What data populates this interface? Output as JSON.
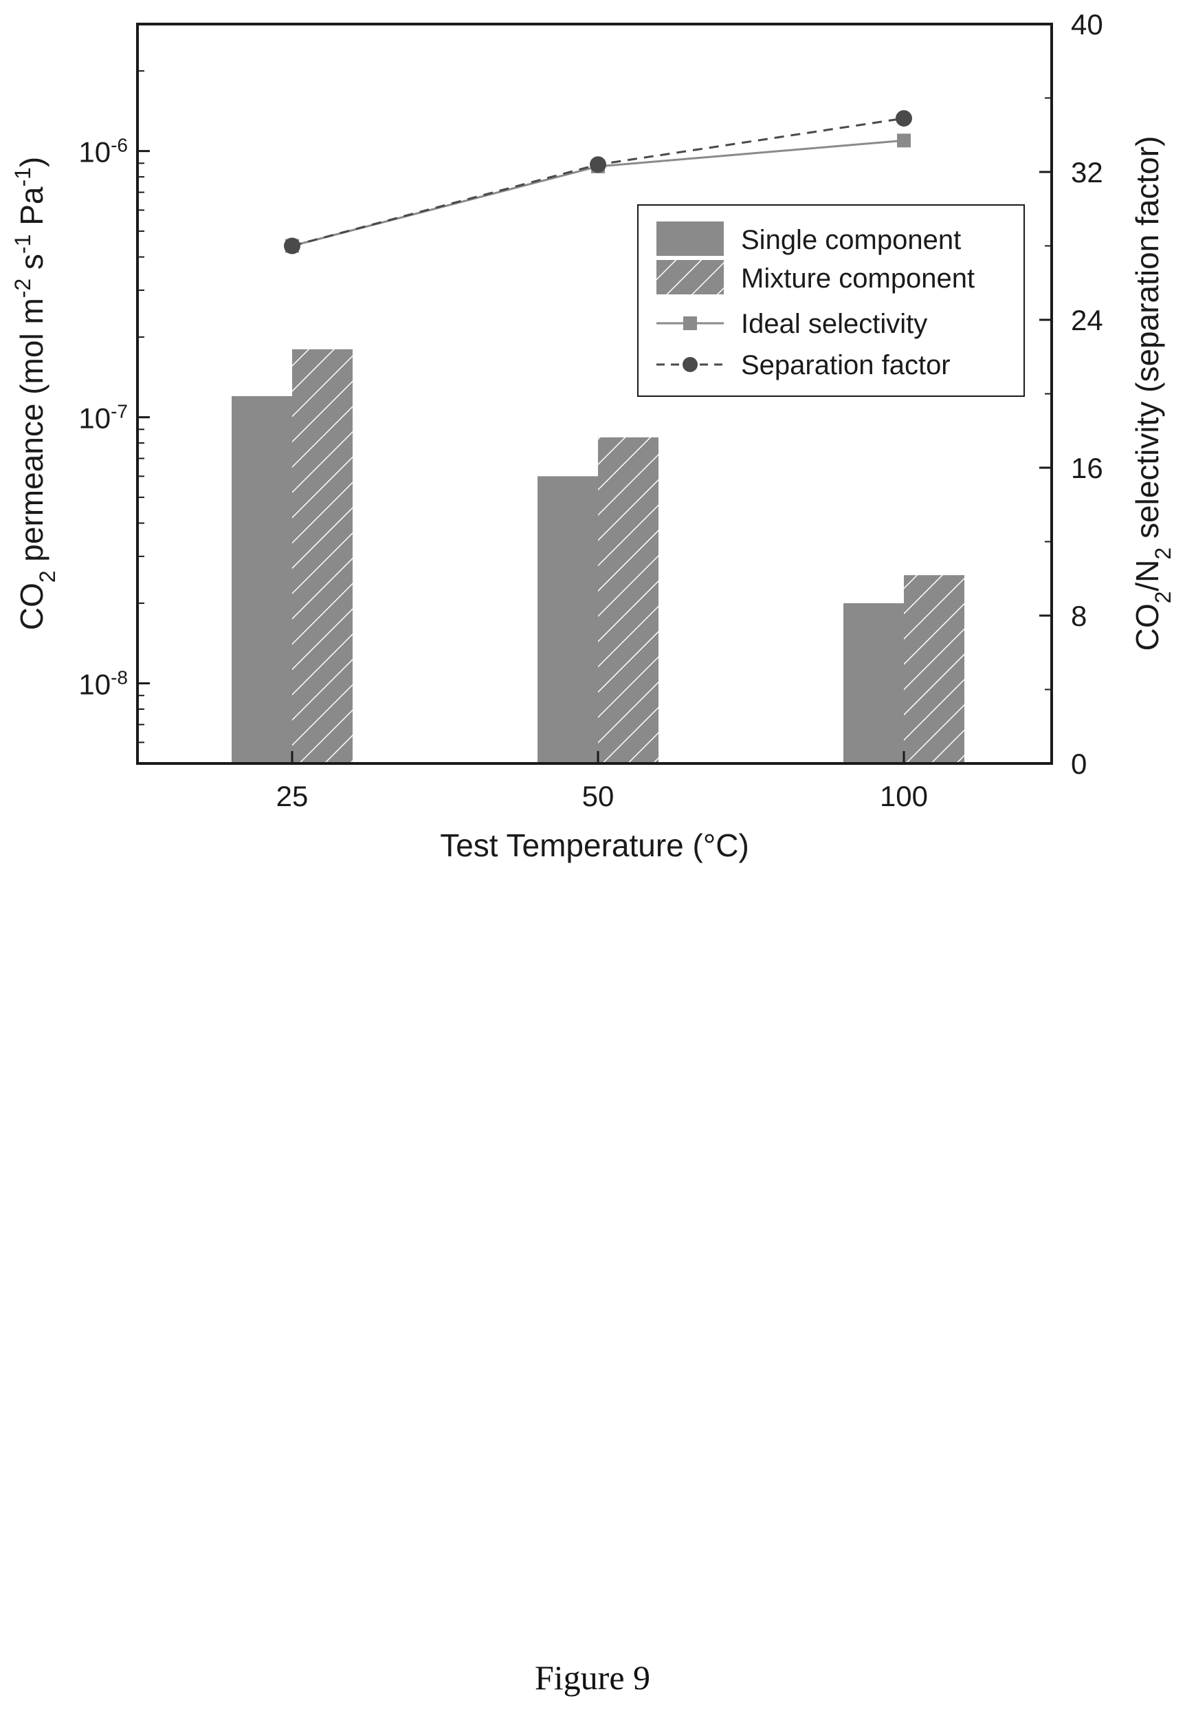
{
  "caption": "Figure 9",
  "chart_data": {
    "type": "bar",
    "categories": [
      "25",
      "50",
      "100"
    ],
    "xlabel": "Test Temperature (°C)",
    "ylabel_left": {
      "pre": "CO",
      "sub": "2",
      "mid": " permeance (mol m",
      "sup1": "-2",
      "mid2": " s",
      "sup2": "-1",
      "mid3": " Pa",
      "sup3": "-1",
      "post": ")"
    },
    "ylabel_right": {
      "pre": "CO",
      "sub1": "2",
      "mid": "/N",
      "sub2": "2",
      "post": " selectivity (separation factor)"
    },
    "y_left": {
      "scale": "log",
      "range": [
        5e-09,
        3e-06
      ],
      "ticks": [
        {
          "value": 1e-08,
          "base": "10",
          "exp": "-8"
        },
        {
          "value": 1e-07,
          "base": "10",
          "exp": "-7"
        },
        {
          "value": 1e-06,
          "base": "10",
          "exp": "-6"
        }
      ]
    },
    "y_right": {
      "scale": "linear",
      "range": [
        0,
        40
      ],
      "ticks": [
        "0",
        "8",
        "16",
        "24",
        "32",
        "40"
      ]
    },
    "bars": [
      {
        "name": "Single component",
        "values": [
          1.2e-07,
          6e-08,
          2e-08
        ],
        "color": "#8a8a8a",
        "pattern": "solid"
      },
      {
        "name": "Mixture component",
        "values": [
          1.8e-07,
          8.4e-08,
          2.55e-08
        ],
        "color": "#8a8a8a",
        "pattern": "hatched"
      }
    ],
    "lines": [
      {
        "name": "Ideal selectivity",
        "values": [
          28.0,
          32.3,
          33.7
        ],
        "marker": "square",
        "style": "solid",
        "color": "#8a8a8a"
      },
      {
        "name": "Separation factor",
        "values": [
          28.0,
          32.4,
          34.9
        ],
        "marker": "circle",
        "style": "dashed",
        "color": "#4a4a4a"
      }
    ],
    "legend_position": "right-top-inside"
  }
}
